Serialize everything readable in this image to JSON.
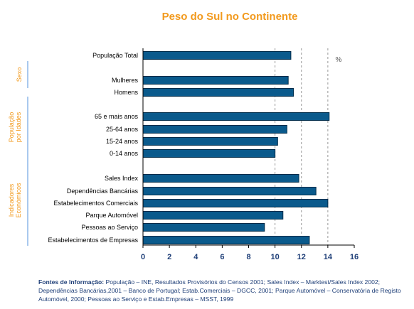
{
  "chart_data": {
    "type": "bar",
    "orientation": "horizontal",
    "title": "Peso do Sul no Continente",
    "unit": "%",
    "categories": [
      "População Total",
      "Mulheres",
      "Homens",
      "65 e mais anos",
      "25-64 anos",
      "15-24 anos",
      "0-14 anos",
      "Sales Index",
      "Dependências Bancárias",
      "Estabelecimentos Comerciais",
      "Parque Automóvel",
      "Pessoas ao Serviço",
      "Estabelecimentos de Empresas"
    ],
    "values": [
      11.2,
      11.0,
      11.4,
      14.1,
      10.9,
      10.2,
      10.0,
      11.8,
      13.1,
      14.0,
      10.6,
      9.2,
      12.6
    ],
    "groups": [
      {
        "label": "Sexo",
        "items": [
          "Mulheres",
          "Homens"
        ]
      },
      {
        "label": "População por Idades",
        "items": [
          "65 e mais anos",
          "25-64 anos",
          "15-24 anos",
          "0-14 anos"
        ]
      },
      {
        "label": "Indicadores Económicos",
        "items": [
          "Sales Index",
          "Dependências Bancárias",
          "Estabelecimentos Comerciais",
          "Parque Automóvel",
          "Pessoas ao Serviço",
          "Estabelecimentos de Empresas"
        ]
      }
    ],
    "xlim": [
      0,
      16
    ],
    "xticks": [
      0,
      2,
      4,
      6,
      8,
      10,
      12,
      14,
      16
    ],
    "grid": "vertical dashed from 10 to 14",
    "legend": "none"
  },
  "source": {
    "label": "Fontes de Informação:",
    "text": "População – INE, Resultados Provisórios do Censos 2001; Sales Index – Marktest/Sales Index 2002; Dependências Bancárias,2001 – Banco de Portugal; Estab.Comerciais – DGCC, 2001; Parque Automóvel – Conservatória de Registo Automóvel, 2000; Pessoas ao Serviço e Estab.Empresas – MSST, 1999"
  },
  "colors": {
    "bar": "#0a5a8c",
    "bar_stroke": "#002c4a",
    "title": "#f29a1e",
    "group_label": "#f29a1e",
    "group_bracket": "#a9c9ee",
    "axis_ticks": "#1f3f78"
  }
}
